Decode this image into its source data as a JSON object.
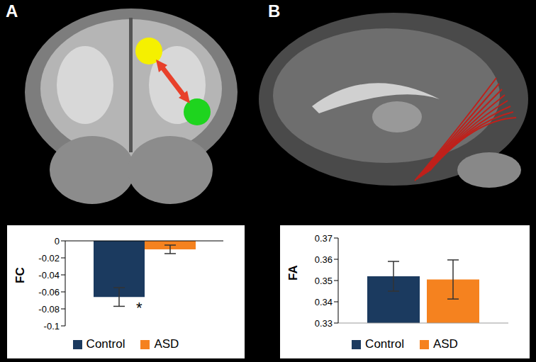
{
  "chart_data": [
    {
      "type": "bar",
      "title": "A",
      "ylabel": "FC",
      "categories": [
        null
      ],
      "series": [
        {
          "name": "Control",
          "color": "#1b3a5f",
          "values": [
            -0.066
          ],
          "error": [
            0.011
          ]
        },
        {
          "name": "ASD",
          "color": "#f5821f",
          "values": [
            -0.01
          ],
          "error": [
            0.005
          ]
        }
      ],
      "ylim": [
        -0.1,
        0
      ],
      "yticks": [
        -0.1,
        -0.08,
        -0.06,
        -0.04,
        -0.02,
        0
      ],
      "annotations": [
        "*"
      ],
      "grid": false,
      "legend": "bottom",
      "tick_labels": "y"
    },
    {
      "type": "bar",
      "title": "B",
      "ylabel": "FA",
      "categories": [
        null
      ],
      "series": [
        {
          "name": "Control",
          "color": "#1b3a5f",
          "values": [
            0.352
          ],
          "error": [
            0.007
          ]
        },
        {
          "name": "ASD",
          "color": "#f5821f",
          "values": [
            0.3505
          ],
          "error": [
            0.0092
          ]
        }
      ],
      "ylim": [
        0.33,
        0.37
      ],
      "yticks": [
        0.33,
        0.34,
        0.35,
        0.36,
        0.37
      ],
      "grid": false,
      "legend": "bottom",
      "tick_labels": "y"
    }
  ]
}
